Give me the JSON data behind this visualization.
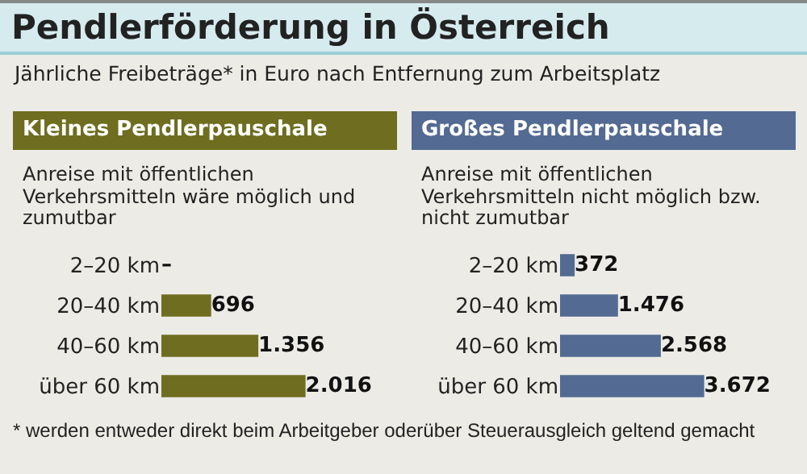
{
  "chart_data": [
    {
      "type": "bar",
      "orientation": "horizontal",
      "title": "Kleines Pendlerpauschale",
      "subtitle": "Anreise mit öffentlichen Verkehrsmitteln wäre möglich und zumutbar",
      "annotations": [
        "Pendlerförderung in Österreich",
        "Jährliche Freibeträge* in Euro nach Entfernung zum Arbeitsplatz"
      ],
      "categories": [
        "2–20 km",
        "20–40 km",
        "40–60 km",
        "über 60 km"
      ],
      "values": [
        null,
        696,
        1356,
        2016
      ],
      "value_labels": [
        "–",
        "696",
        "1.356",
        "2.016"
      ],
      "color": "#6f6d1f",
      "tick_labels": "y",
      "grid": false,
      "legend": false
    },
    {
      "type": "bar",
      "orientation": "horizontal",
      "title": "Großes Pendlerpauschale",
      "subtitle": "Anreise mit öffentlichen Verkehrsmitteln nicht möglich bzw. nicht zumutbar",
      "annotations": [
        "* werden entweder direkt beim Arbeitgeber oderüber Steuerausgleich geltend gemacht"
      ],
      "categories": [
        "2–20 km",
        "20–40 km",
        "40–60 km",
        "über 60 km"
      ],
      "values": [
        372,
        1476,
        2568,
        3672
      ],
      "value_labels": [
        "372",
        "1.476",
        "2.568",
        "3.672"
      ],
      "color": "#536a92",
      "tick_labels": "y",
      "grid": false,
      "legend": false
    }
  ]
}
